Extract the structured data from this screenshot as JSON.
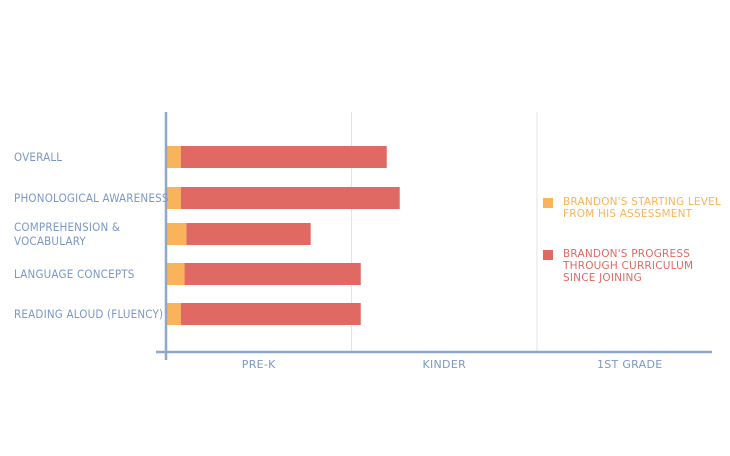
{
  "chart_data": {
    "type": "bar",
    "orientation": "horizontal",
    "stacked": true,
    "title": "",
    "xlabel": "",
    "ylabel": "",
    "x_tick_labels": [
      "PRE-K",
      "KINDER",
      "1ST GRADE"
    ],
    "xlim": [
      0,
      3
    ],
    "grid": true,
    "legend_position": "right",
    "categories": [
      "OVERALL",
      "PHONOLOGICAL AWARENESS",
      "COMPREHENSION &\nVOCABULARY",
      "LANGUAGE CONCEPTS",
      "READING ALOUD (FLUENCY)"
    ],
    "series": [
      {
        "name": "BRANDON'S STARTING LEVEL\nFROM HIS ASSESSMENT",
        "color": "#f9b35a",
        "values": [
          0.08,
          0.08,
          0.11,
          0.1,
          0.08
        ]
      },
      {
        "name": "BRANDON'S PROGRESS\nTHROUGH CURRICULUM\nSINCE JOINING",
        "color": "#e06a63",
        "values": [
          1.11,
          1.18,
          0.67,
          0.95,
          0.97
        ]
      }
    ]
  },
  "colors": {
    "axis": "#8fa7cb",
    "grid": "#dfe3ea",
    "label": "#7b98c4"
  }
}
